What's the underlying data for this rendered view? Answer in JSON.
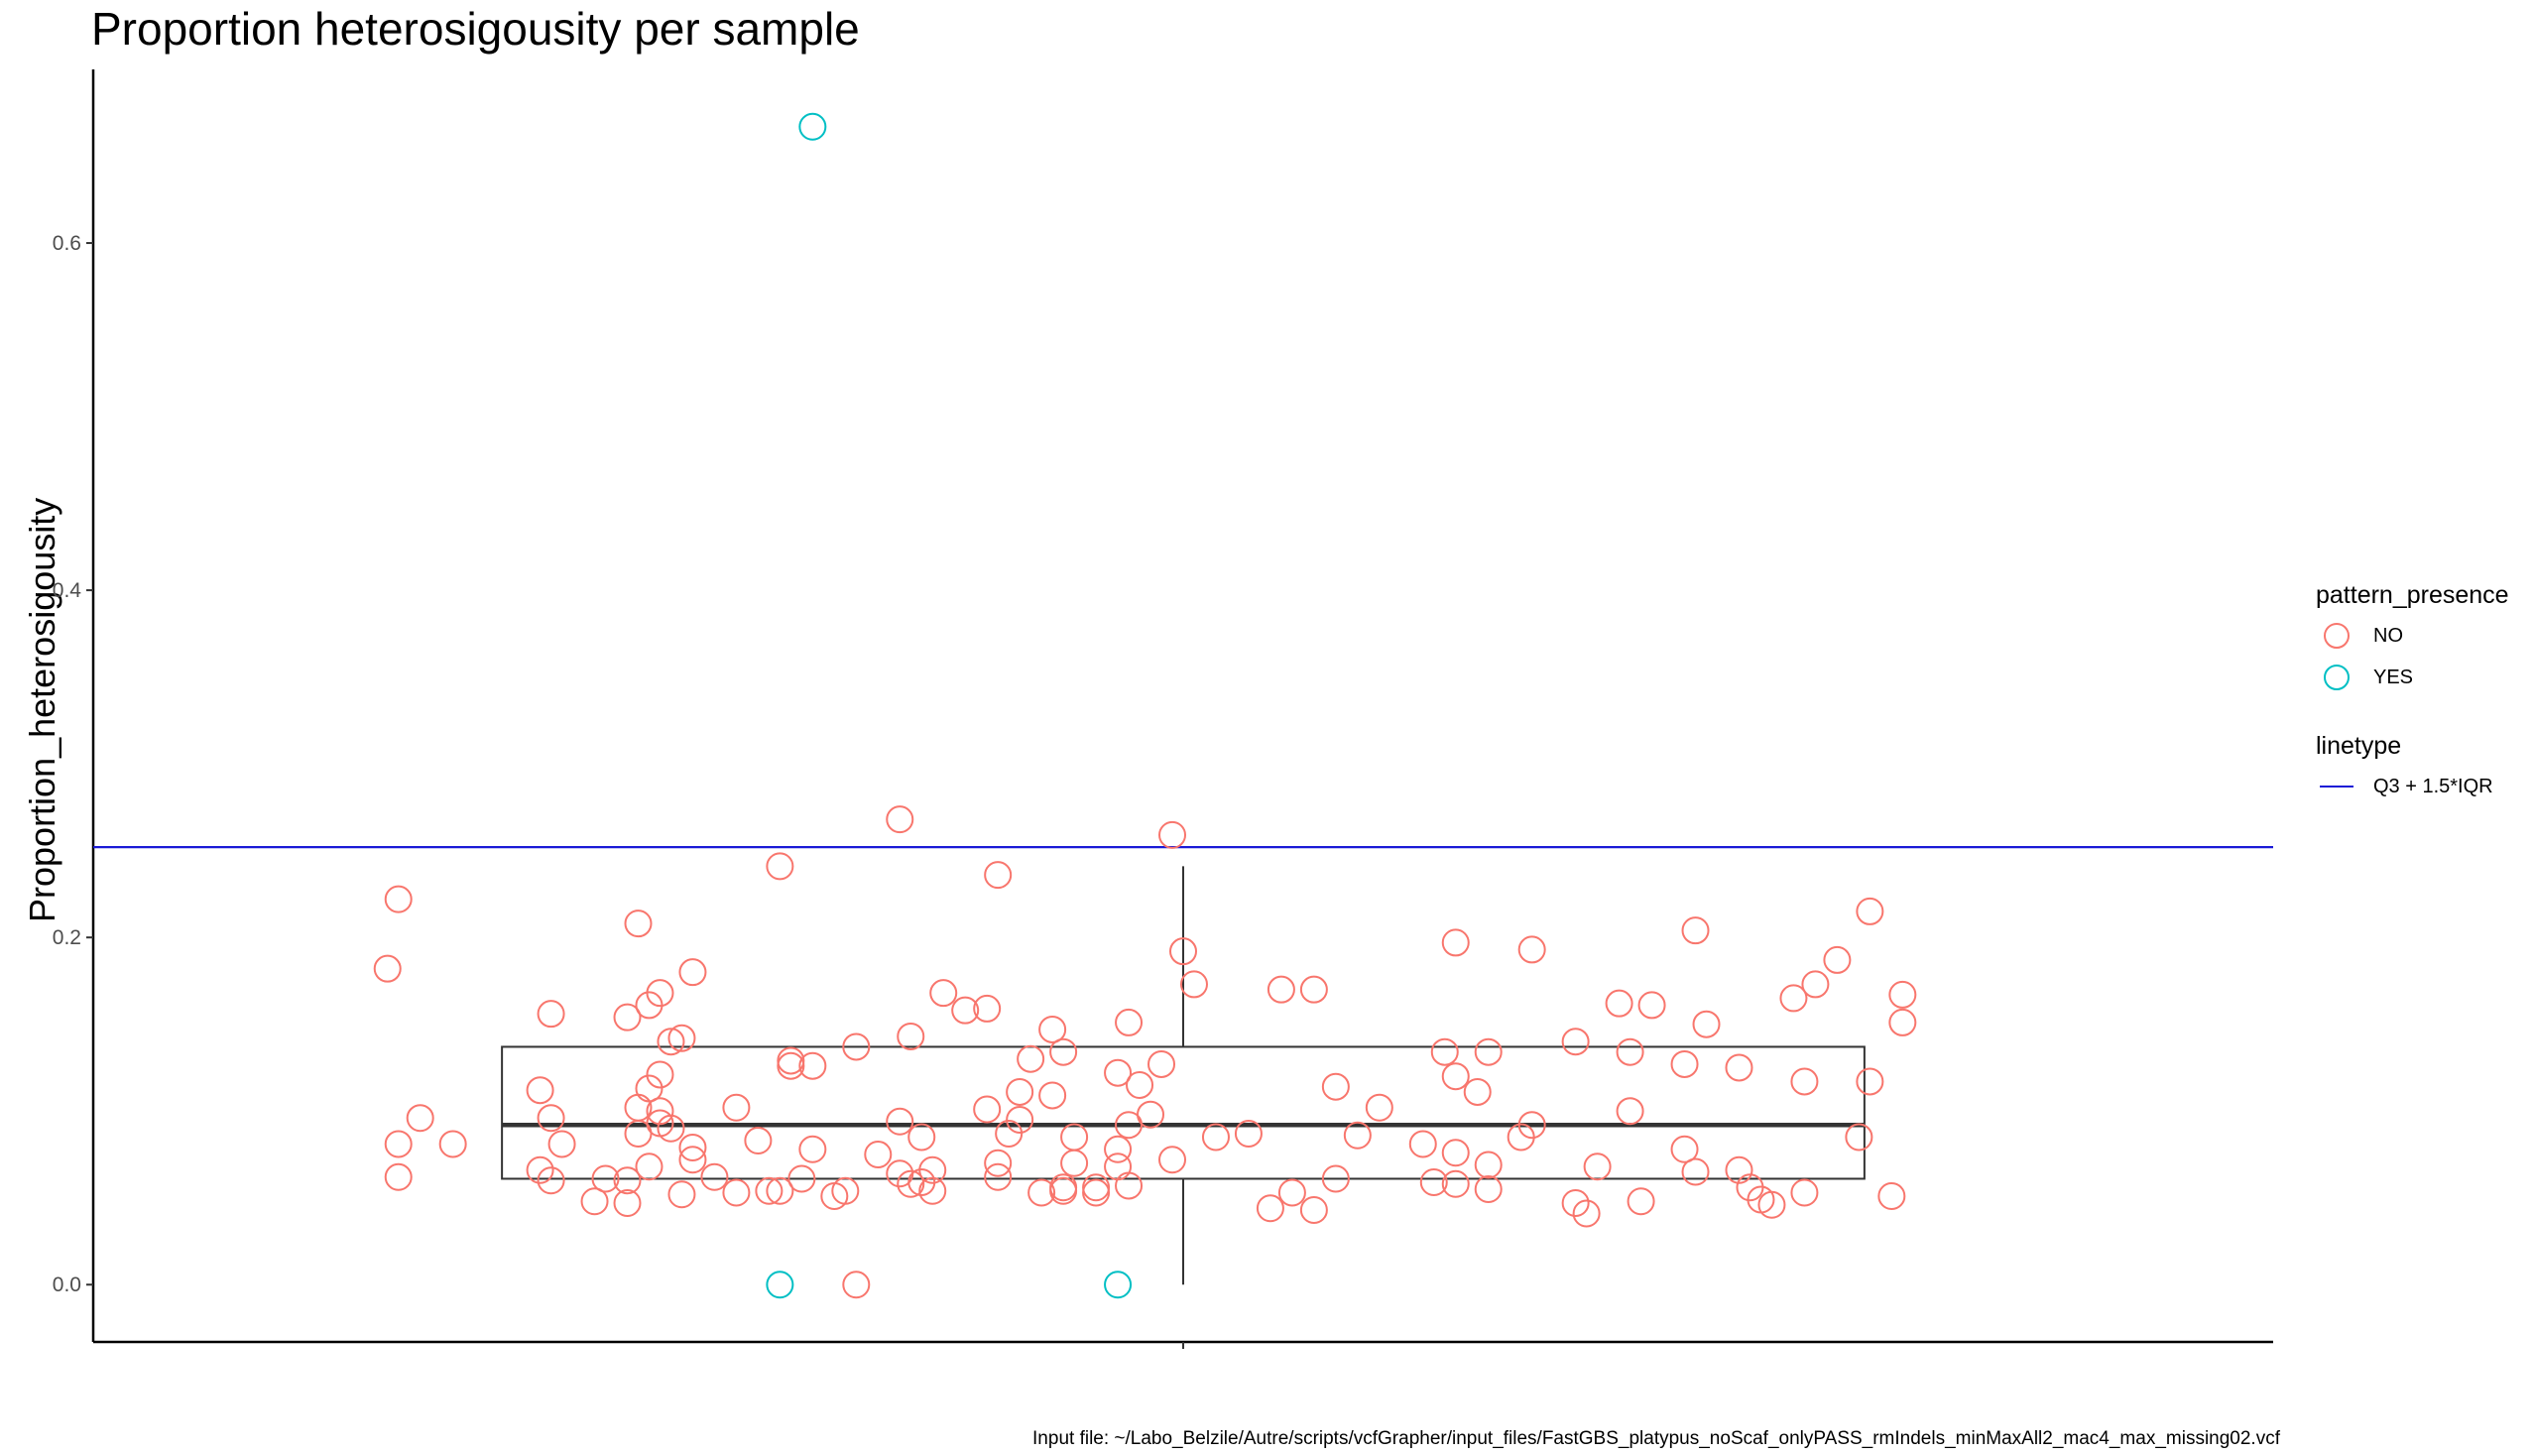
{
  "chart_data": {
    "type": "scatter",
    "title": "Proportion heterosigousity per sample",
    "ylabel": "Proportion_heterosigousity",
    "xlabel": "",
    "ylim": [
      -0.033,
      0.7
    ],
    "yticks": [
      0.0,
      0.2,
      0.4,
      0.6
    ],
    "ytick_labels": [
      "0.0",
      "0.2",
      "0.4",
      "0.6"
    ],
    "grid": false,
    "legend_position": "right",
    "boxplot": {
      "q1": 0.061,
      "median": 0.092,
      "q3": 0.137,
      "whisker_low": 0.0,
      "whisker_high": 0.241
    },
    "hline": {
      "value": 0.252,
      "label": "Q3 + 1.5*IQR",
      "color": "#1a1ad6"
    },
    "series": [
      {
        "name": "NO",
        "color": "#f8766d",
        "points": [
          {
            "x": -0.73,
            "y": 0.182
          },
          {
            "x": -0.72,
            "y": 0.222
          },
          {
            "x": -0.72,
            "y": 0.081
          },
          {
            "x": -0.72,
            "y": 0.062
          },
          {
            "x": -0.7,
            "y": 0.096
          },
          {
            "x": -0.67,
            "y": 0.081
          },
          {
            "x": -0.59,
            "y": 0.112
          },
          {
            "x": -0.59,
            "y": 0.066
          },
          {
            "x": -0.58,
            "y": 0.06
          },
          {
            "x": -0.58,
            "y": 0.096
          },
          {
            "x": -0.58,
            "y": 0.156
          },
          {
            "x": -0.57,
            "y": 0.081
          },
          {
            "x": -0.54,
            "y": 0.048
          },
          {
            "x": -0.53,
            "y": 0.061
          },
          {
            "x": -0.51,
            "y": 0.047
          },
          {
            "x": -0.51,
            "y": 0.06
          },
          {
            "x": -0.51,
            "y": 0.154
          },
          {
            "x": -0.5,
            "y": 0.087
          },
          {
            "x": -0.5,
            "y": 0.102
          },
          {
            "x": -0.5,
            "y": 0.208
          },
          {
            "x": -0.49,
            "y": 0.113
          },
          {
            "x": -0.49,
            "y": 0.161
          },
          {
            "x": -0.49,
            "y": 0.068
          },
          {
            "x": -0.48,
            "y": 0.168
          },
          {
            "x": -0.48,
            "y": 0.1
          },
          {
            "x": -0.48,
            "y": 0.121
          },
          {
            "x": -0.48,
            "y": 0.093
          },
          {
            "x": -0.47,
            "y": 0.09
          },
          {
            "x": -0.47,
            "y": 0.14
          },
          {
            "x": -0.46,
            "y": 0.052
          },
          {
            "x": -0.46,
            "y": 0.142
          },
          {
            "x": -0.45,
            "y": 0.18
          },
          {
            "x": -0.45,
            "y": 0.079
          },
          {
            "x": -0.45,
            "y": 0.072
          },
          {
            "x": -0.43,
            "y": 0.062
          },
          {
            "x": -0.41,
            "y": 0.053
          },
          {
            "x": -0.41,
            "y": 0.102
          },
          {
            "x": -0.39,
            "y": 0.083
          },
          {
            "x": -0.38,
            "y": 0.054
          },
          {
            "x": -0.37,
            "y": 0.241
          },
          {
            "x": -0.37,
            "y": 0.054
          },
          {
            "x": -0.36,
            "y": 0.129
          },
          {
            "x": -0.36,
            "y": 0.126
          },
          {
            "x": -0.35,
            "y": 0.061
          },
          {
            "x": -0.34,
            "y": 0.126
          },
          {
            "x": -0.34,
            "y": 0.078
          },
          {
            "x": -0.32,
            "y": 0.051
          },
          {
            "x": -0.31,
            "y": 0.054
          },
          {
            "x": -0.3,
            "y": 0.137
          },
          {
            "x": -0.28,
            "y": 0.075
          },
          {
            "x": -0.26,
            "y": 0.064
          },
          {
            "x": -0.26,
            "y": 0.268
          },
          {
            "x": -0.26,
            "y": 0.094
          },
          {
            "x": -0.25,
            "y": 0.143
          },
          {
            "x": -0.25,
            "y": 0.058
          },
          {
            "x": -0.24,
            "y": 0.085
          },
          {
            "x": -0.24,
            "y": 0.059
          },
          {
            "x": -0.23,
            "y": 0.054
          },
          {
            "x": -0.23,
            "y": 0.066
          },
          {
            "x": -0.22,
            "y": 0.168
          },
          {
            "x": -0.2,
            "y": 0.158
          },
          {
            "x": -0.18,
            "y": 0.101
          },
          {
            "x": -0.18,
            "y": 0.159
          },
          {
            "x": -0.17,
            "y": 0.236
          },
          {
            "x": -0.17,
            "y": 0.062
          },
          {
            "x": -0.17,
            "y": 0.07
          },
          {
            "x": -0.16,
            "y": 0.087
          },
          {
            "x": -0.15,
            "y": 0.095
          },
          {
            "x": -0.15,
            "y": 0.111
          },
          {
            "x": -0.14,
            "y": 0.13
          },
          {
            "x": -0.13,
            "y": 0.053
          },
          {
            "x": -0.12,
            "y": 0.109
          },
          {
            "x": -0.12,
            "y": 0.147
          },
          {
            "x": -0.11,
            "y": 0.134
          },
          {
            "x": -0.11,
            "y": 0.056
          },
          {
            "x": -0.11,
            "y": 0.054
          },
          {
            "x": -0.1,
            "y": 0.085
          },
          {
            "x": -0.1,
            "y": 0.07
          },
          {
            "x": -0.08,
            "y": 0.056
          },
          {
            "x": -0.08,
            "y": 0.053
          },
          {
            "x": -0.06,
            "y": 0.122
          },
          {
            "x": -0.06,
            "y": 0.078
          },
          {
            "x": -0.06,
            "y": 0.068
          },
          {
            "x": -0.05,
            "y": 0.151
          },
          {
            "x": -0.05,
            "y": 0.092
          },
          {
            "x": -0.05,
            "y": 0.057
          },
          {
            "x": -0.04,
            "y": 0.115
          },
          {
            "x": -0.03,
            "y": 0.098
          },
          {
            "x": -0.02,
            "y": 0.127
          },
          {
            "x": -0.01,
            "y": 0.259
          },
          {
            "x": -0.01,
            "y": 0.072
          },
          {
            "x": 0.0,
            "y": 0.192
          },
          {
            "x": 0.01,
            "y": 0.173
          },
          {
            "x": 0.03,
            "y": 0.085
          },
          {
            "x": 0.06,
            "y": 0.087
          },
          {
            "x": 0.08,
            "y": 0.044
          },
          {
            "x": 0.09,
            "y": 0.17
          },
          {
            "x": 0.1,
            "y": 0.053
          },
          {
            "x": 0.12,
            "y": 0.17
          },
          {
            "x": 0.12,
            "y": 0.043
          },
          {
            "x": 0.14,
            "y": 0.114
          },
          {
            "x": 0.14,
            "y": 0.061
          },
          {
            "x": 0.16,
            "y": 0.086
          },
          {
            "x": 0.18,
            "y": 0.102
          },
          {
            "x": 0.22,
            "y": 0.081
          },
          {
            "x": 0.23,
            "y": 0.059
          },
          {
            "x": 0.24,
            "y": 0.134
          },
          {
            "x": 0.25,
            "y": 0.076
          },
          {
            "x": 0.25,
            "y": 0.058
          },
          {
            "x": 0.25,
            "y": 0.12
          },
          {
            "x": 0.25,
            "y": 0.197
          },
          {
            "x": 0.27,
            "y": 0.111
          },
          {
            "x": 0.28,
            "y": 0.069
          },
          {
            "x": 0.28,
            "y": 0.055
          },
          {
            "x": 0.28,
            "y": 0.134
          },
          {
            "x": 0.31,
            "y": 0.085
          },
          {
            "x": 0.32,
            "y": 0.193
          },
          {
            "x": 0.32,
            "y": 0.092
          },
          {
            "x": 0.36,
            "y": 0.047
          },
          {
            "x": 0.36,
            "y": 0.14
          },
          {
            "x": 0.37,
            "y": 0.041
          },
          {
            "x": 0.38,
            "y": 0.068
          },
          {
            "x": 0.4,
            "y": 0.162
          },
          {
            "x": 0.41,
            "y": 0.1
          },
          {
            "x": 0.41,
            "y": 0.134
          },
          {
            "x": 0.42,
            "y": 0.048
          },
          {
            "x": 0.43,
            "y": 0.161
          },
          {
            "x": 0.46,
            "y": 0.127
          },
          {
            "x": 0.46,
            "y": 0.078
          },
          {
            "x": 0.47,
            "y": 0.204
          },
          {
            "x": 0.47,
            "y": 0.065
          },
          {
            "x": 0.48,
            "y": 0.15
          },
          {
            "x": 0.51,
            "y": 0.066
          },
          {
            "x": 0.51,
            "y": 0.125
          },
          {
            "x": 0.52,
            "y": 0.056
          },
          {
            "x": 0.53,
            "y": 0.049
          },
          {
            "x": 0.54,
            "y": 0.046
          },
          {
            "x": 0.56,
            "y": 0.165
          },
          {
            "x": 0.57,
            "y": 0.117
          },
          {
            "x": 0.57,
            "y": 0.053
          },
          {
            "x": 0.58,
            "y": 0.173
          },
          {
            "x": 0.6,
            "y": 0.187
          },
          {
            "x": 0.62,
            "y": 0.085
          },
          {
            "x": 0.63,
            "y": 0.117
          },
          {
            "x": 0.63,
            "y": 0.215
          },
          {
            "x": 0.65,
            "y": 0.051
          },
          {
            "x": 0.66,
            "y": 0.151
          },
          {
            "x": 0.66,
            "y": 0.167
          }
        ]
      },
      {
        "name": "YES",
        "color": "#00bfc4",
        "points": [
          {
            "x": -0.34,
            "y": 0.667
          },
          {
            "x": -0.37,
            "y": 0.0
          },
          {
            "x": -0.06,
            "y": 0.0
          }
        ],
        "extra_no_points": [
          {
            "x": -0.3,
            "y": 0.0
          }
        ]
      }
    ]
  },
  "legend": {
    "color_title": "pattern_presence",
    "color_items": [
      {
        "label": "NO",
        "color": "#f8766d"
      },
      {
        "label": "YES",
        "color": "#00bfc4"
      }
    ],
    "linetype_title": "linetype",
    "linetype_items": [
      {
        "label": "Q3 + 1.5*IQR",
        "color": "#1a1ad6"
      }
    ]
  },
  "caption": "Input file: ~/Labo_Belzile/Autre/scripts/vcfGrapher/input_files/FastGBS_platypus_noScaf_onlyPASS_rmIndels_minMaxAll2_mac4_max_missing02.vcf"
}
